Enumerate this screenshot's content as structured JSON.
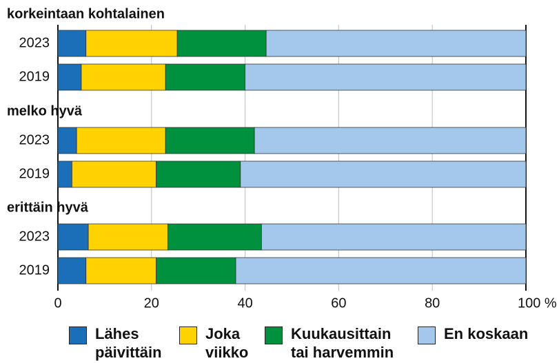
{
  "chart_data": {
    "type": "stacked-bar-horizontal",
    "series": [
      {
        "name": "Lähes päivittäin",
        "color": "#1a6fb8"
      },
      {
        "name": "Joka viikko",
        "color": "#ffd200"
      },
      {
        "name": "Kuukausittain tai harvemmin",
        "color": "#00913e"
      },
      {
        "name": "En koskaan",
        "color": "#a3c8ec"
      }
    ],
    "groups": [
      {
        "title": "korkeintaan kohtalainen",
        "categories": [
          "2023",
          "2019"
        ],
        "values": [
          [
            6,
            19.5,
            19,
            55.5
          ],
          [
            5,
            18,
            17,
            60
          ]
        ]
      },
      {
        "title": "melko hyvä",
        "categories": [
          "2023",
          "2019"
        ],
        "values": [
          [
            4,
            19,
            19,
            58
          ],
          [
            3,
            18,
            18,
            61
          ]
        ]
      },
      {
        "title": "erittäin hyvä",
        "categories": [
          "2023",
          "2019"
        ],
        "values": [
          [
            6.5,
            17,
            20,
            56.5
          ],
          [
            6,
            15,
            17,
            62
          ]
        ]
      }
    ],
    "xlim": [
      0,
      100
    ],
    "xticks": [
      0,
      20,
      40,
      60,
      80,
      {
        "value": 100,
        "label": "100 %"
      }
    ],
    "grid": true
  }
}
